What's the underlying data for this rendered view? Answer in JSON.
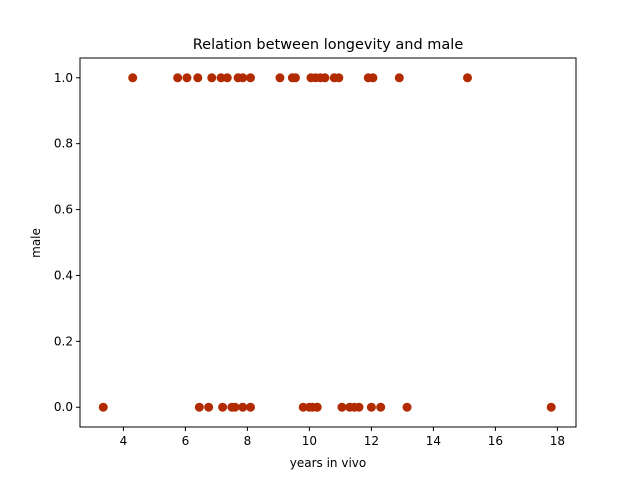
{
  "chart_data": {
    "type": "scatter",
    "title": "Relation between longevity and male",
    "xlabel": "years in vivo",
    "ylabel": "male",
    "xlim": [
      2.6,
      18.6
    ],
    "ylim": [
      -0.06,
      1.06
    ],
    "xticks": [
      4,
      6,
      8,
      10,
      12,
      14,
      16,
      18
    ],
    "yticks": [
      0.0,
      0.2,
      0.4,
      0.6,
      0.8,
      1.0
    ],
    "xtick_labels": [
      "4",
      "6",
      "8",
      "10",
      "12",
      "14",
      "16",
      "18"
    ],
    "ytick_labels": [
      "0.0",
      "0.2",
      "0.4",
      "0.6",
      "0.8",
      "1.0"
    ],
    "grid": false,
    "marker_color": "#b22a00",
    "series": [
      {
        "x": [
          4.3,
          5.75,
          6.05,
          6.4,
          6.85,
          7.15,
          7.35,
          7.7,
          7.85,
          8.1,
          9.05,
          9.45,
          9.55,
          10.05,
          10.2,
          10.35,
          10.5,
          10.8,
          10.95,
          11.9,
          12.05,
          12.9,
          15.1
        ],
        "y": [
          1,
          1,
          1,
          1,
          1,
          1,
          1,
          1,
          1,
          1,
          1,
          1,
          1,
          1,
          1,
          1,
          1,
          1,
          1,
          1,
          1,
          1,
          1
        ]
      },
      {
        "x": [
          3.35,
          6.45,
          6.75,
          7.2,
          7.5,
          7.6,
          7.85,
          8.1,
          9.8,
          10.0,
          10.1,
          10.25,
          10.25,
          11.05,
          11.3,
          11.45,
          11.6,
          12.0,
          12.3,
          13.15,
          17.8
        ],
        "y": [
          0,
          0,
          0,
          0,
          0,
          0,
          0,
          0,
          0,
          0,
          0,
          0,
          0,
          0,
          0,
          0,
          0,
          0,
          0,
          0,
          0
        ]
      }
    ]
  }
}
